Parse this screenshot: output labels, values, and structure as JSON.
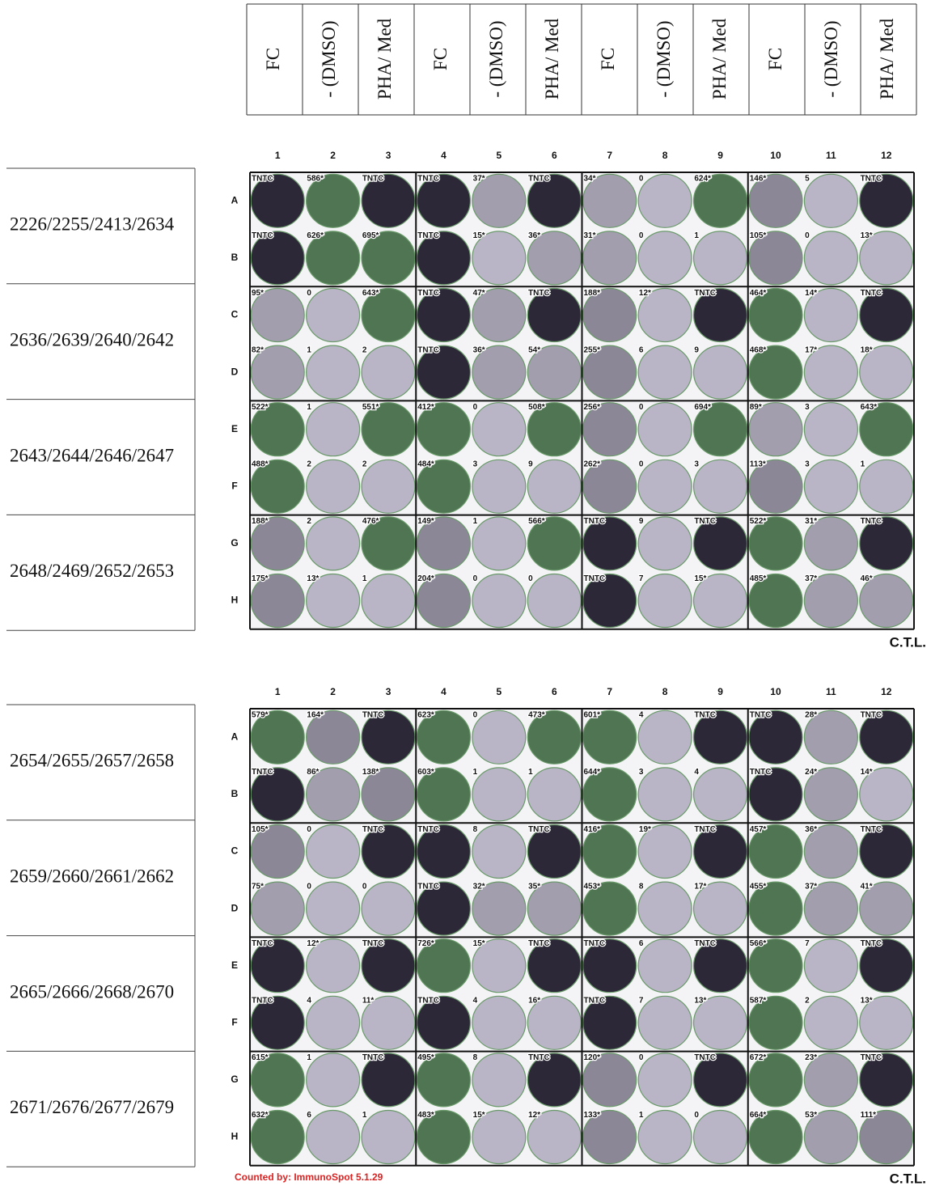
{
  "header": {
    "columns": [
      "FC",
      "- (DMSO)",
      "PHA/ Med",
      "FC",
      "- (DMSO)",
      "PHA/ Med",
      "FC",
      "- (DMSO)",
      "PHA/ Med",
      "FC",
      "- (DMSO)",
      "PHA/ Med"
    ]
  },
  "plates": [
    {
      "column_numbers": [
        1,
        2,
        3,
        4,
        5,
        6,
        7,
        8,
        9,
        10,
        11,
        12
      ],
      "row_letters": [
        "A",
        "B",
        "C",
        "D",
        "E",
        "F",
        "G",
        "H"
      ],
      "samples": [
        "2226/2255/2413/2634",
        "2636/2639/2640/2642",
        "2643/2644/2646/2647",
        "2648/2469/2652/2653"
      ],
      "counts": [
        [
          "TNTC",
          "586*",
          "TNTC",
          "TNTC",
          "37*",
          "TNTC",
          "34*",
          "0",
          "624*",
          "146*",
          "5",
          "TNTC"
        ],
        [
          "TNTC",
          "626*",
          "695*",
          "TNTC",
          "15*",
          "36*",
          "31*",
          "0",
          "1",
          "105*",
          "0",
          "13*"
        ],
        [
          "95*",
          "0",
          "643*",
          "TNTC",
          "47*",
          "TNTC",
          "188*",
          "12*",
          "TNTC",
          "464*",
          "14*",
          "TNTC"
        ],
        [
          "82*",
          "1",
          "2",
          "TNTC",
          "36*",
          "54*",
          "255*",
          "6",
          "9",
          "468*",
          "17*",
          "18*"
        ],
        [
          "522*",
          "1",
          "551*",
          "412*",
          "0",
          "508*",
          "256*",
          "0",
          "694*",
          "89*",
          "3",
          "643*"
        ],
        [
          "488*",
          "2",
          "2",
          "484*",
          "3",
          "9",
          "262*",
          "0",
          "3",
          "113*",
          "3",
          "1"
        ],
        [
          "188*",
          "2",
          "476*",
          "149*",
          "1",
          "566*",
          "TNTC",
          "9",
          "TNTC",
          "522*",
          "31*",
          "TNTC"
        ],
        [
          "175*",
          "13*",
          "1",
          "204*",
          "0",
          "0",
          "TNTC",
          "7",
          "15*",
          "485*",
          "37*",
          "46*"
        ]
      ]
    },
    {
      "column_numbers": [
        1,
        2,
        3,
        4,
        5,
        6,
        7,
        8,
        9,
        10,
        11,
        12
      ],
      "row_letters": [
        "A",
        "B",
        "C",
        "D",
        "E",
        "F",
        "G",
        "H"
      ],
      "samples": [
        "2654/2655/2657/2658",
        "2659/2660/2661/2662",
        "2665/2666/2668/2670",
        "2671/2676/2677/2679"
      ],
      "counts": [
        [
          "579*",
          "164*",
          "TNTC",
          "623*",
          "0",
          "473*",
          "601*",
          "4",
          "TNTC",
          "TNTC",
          "28*",
          "TNTC"
        ],
        [
          "TNTC",
          "86*",
          "138*",
          "603*",
          "1",
          "1",
          "644*",
          "3",
          "4",
          "TNTC",
          "24*",
          "14*"
        ],
        [
          "105*",
          "0",
          "TNTC",
          "TNTC",
          "8",
          "TNTC",
          "416*",
          "19*",
          "TNTC",
          "457*",
          "36*",
          "TNTC"
        ],
        [
          "75*",
          "0",
          "0",
          "TNTC",
          "32*",
          "35*",
          "453*",
          "8",
          "17*",
          "455*",
          "37*",
          "41*"
        ],
        [
          "TNTC",
          "12*",
          "TNTC",
          "726*",
          "15*",
          "TNTC",
          "TNTC",
          "6",
          "TNTC",
          "566*",
          "7",
          "TNTC"
        ],
        [
          "TNTC",
          "4",
          "11*",
          "TNTC",
          "4",
          "16*",
          "TNTC",
          "7",
          "13*",
          "587*",
          "2",
          "13*"
        ],
        [
          "615*",
          "1",
          "TNTC",
          "495*",
          "8",
          "TNTC",
          "120*",
          "0",
          "TNTC",
          "672*",
          "23*",
          "TNTC"
        ],
        [
          "632*",
          "6",
          "1",
          "483*",
          "15*",
          "12*",
          "133*",
          "1",
          "0",
          "664*",
          "53*",
          "111*"
        ]
      ]
    }
  ],
  "logo": "C.T.L.",
  "footer": "Counted by: ImmunoSpot 5.1.29"
}
